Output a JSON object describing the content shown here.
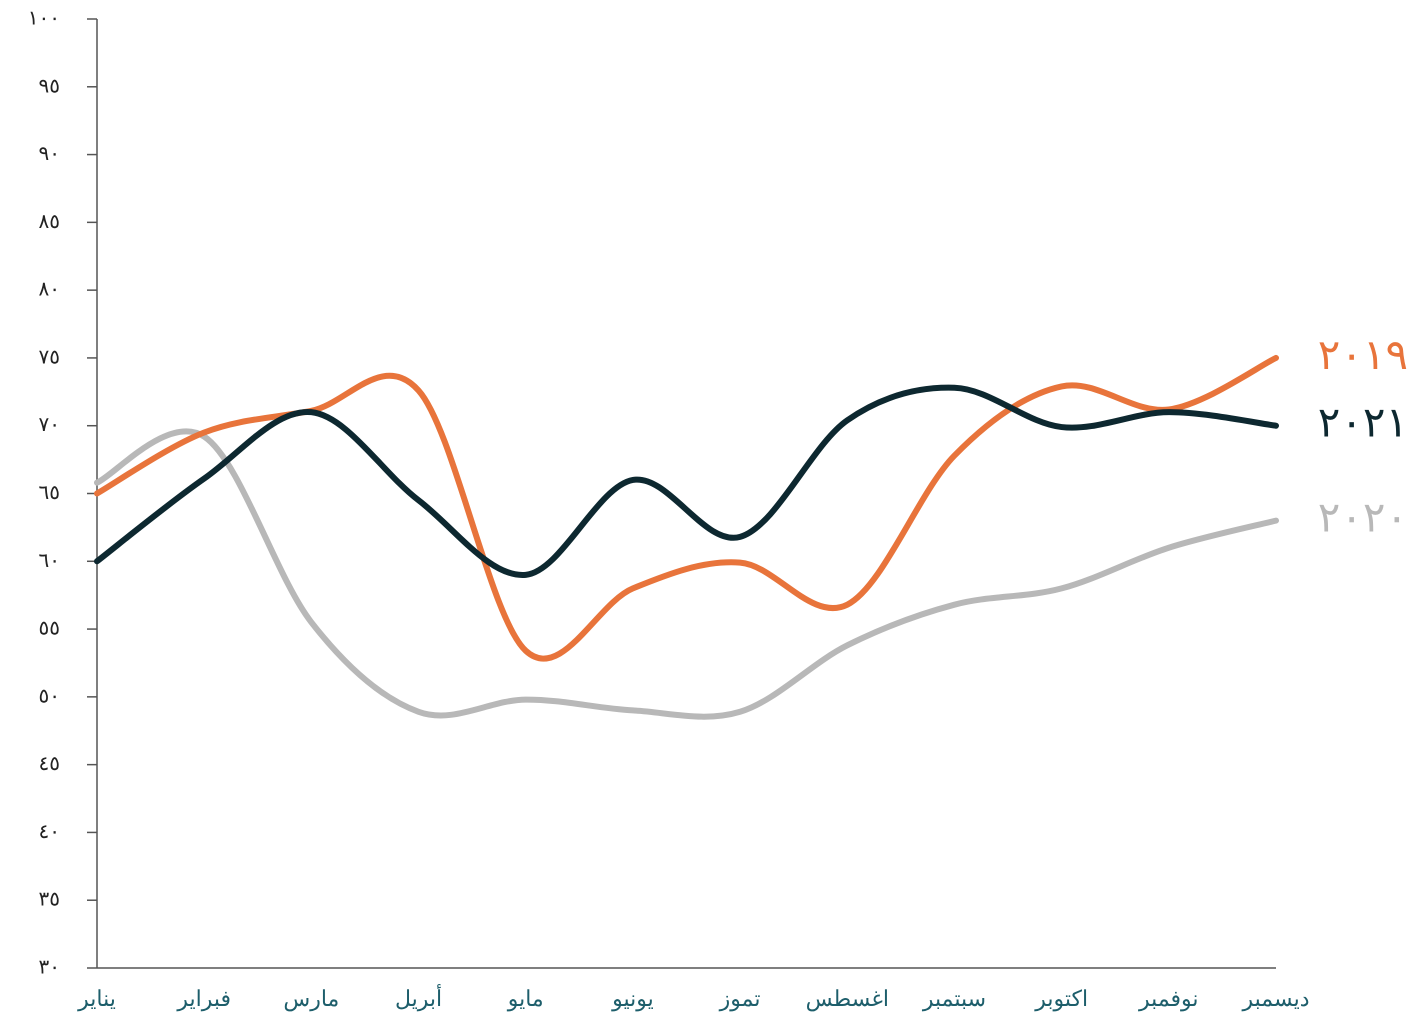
{
  "chart_data": {
    "type": "line",
    "categories": [
      "يناير",
      "فبراير",
      "مارس",
      "أبريل",
      "مايو",
      "يونيو",
      "تموز",
      "اغسطس",
      "سبتمبر",
      "اكتوبر",
      "نوفمبر",
      "ديسمبر"
    ],
    "series": [
      {
        "name": "٢٠١٩",
        "color": "#e8743b",
        "values": [
          65,
          69.5,
          71.1,
          72.6,
          53.4,
          58,
          59.9,
          56.8,
          67.8,
          72.9,
          71.2,
          75
        ]
      },
      {
        "name": "٢٠٢١",
        "color": "#0d2830",
        "values": [
          60,
          66.1,
          71,
          64.5,
          59,
          66,
          61.8,
          70.4,
          72.8,
          69.9,
          71,
          70
        ]
      },
      {
        "name": "٢٠٢٠",
        "color": "#b8b8b8",
        "values": [
          65.8,
          69.2,
          55.5,
          48.9,
          49.8,
          49,
          48.9,
          53.8,
          56.8,
          58,
          61,
          63
        ]
      }
    ],
    "ylim": [
      30,
      100
    ],
    "yticks": [
      {
        "value": 30,
        "label": "٣٠"
      },
      {
        "value": 35,
        "label": "٣٥"
      },
      {
        "value": 40,
        "label": "٤٠"
      },
      {
        "value": 45,
        "label": "٤٥"
      },
      {
        "value": 50,
        "label": "٥٠"
      },
      {
        "value": 55,
        "label": "٥٥"
      },
      {
        "value": 60,
        "label": "٦٠"
      },
      {
        "value": 65,
        "label": "٦٥"
      },
      {
        "value": 70,
        "label": "٧٠"
      },
      {
        "value": 75,
        "label": "٧٥"
      },
      {
        "value": 80,
        "label": "٨٠"
      },
      {
        "value": 85,
        "label": "٨٥"
      },
      {
        "value": 90,
        "label": "٩٠"
      },
      {
        "value": 95,
        "label": "٩٥"
      },
      {
        "value": 100,
        "label": "١٠٠"
      }
    ]
  }
}
